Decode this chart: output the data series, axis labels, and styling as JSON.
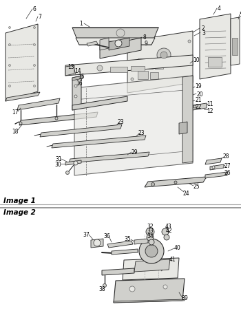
{
  "bg": "#f5f5f0",
  "line_dark": "#2a2a2a",
  "line_mid": "#666666",
  "line_light": "#aaaaaa",
  "fill_light": "#e8e8e4",
  "fill_mid": "#d0d0cc",
  "fill_dark": "#b8b8b4",
  "label_fs": 5.5,
  "section_fs": 7.5,
  "fig_w": 3.5,
  "fig_h": 4.56,
  "dpi": 100,
  "image1_label": "Image 1",
  "image2_label": "Image 2"
}
